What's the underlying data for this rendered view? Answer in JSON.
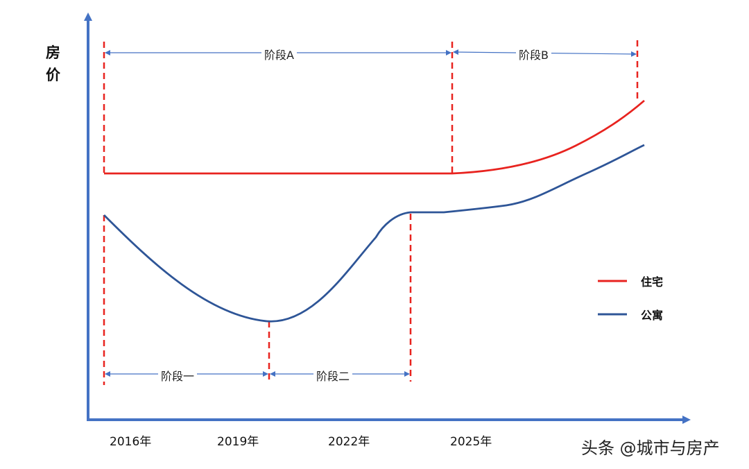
{
  "chart_data": {
    "type": "line",
    "ylabel_chars": [
      "房",
      "价"
    ],
    "x_ticks": [
      "2016年",
      "2019年",
      "2022年",
      "2025年"
    ],
    "series": [
      {
        "name": "住宅",
        "color": "#e8231f"
      },
      {
        "name": "公寓",
        "color": "#2e5597"
      }
    ],
    "phases": [
      "阶段A",
      "阶段B",
      "阶段一",
      "阶段二"
    ]
  },
  "watermark": "头条 @城市与房产",
  "colors": {
    "axis": "#4472c4",
    "boundary": "#e8231f",
    "arrow": "#4472c4"
  }
}
